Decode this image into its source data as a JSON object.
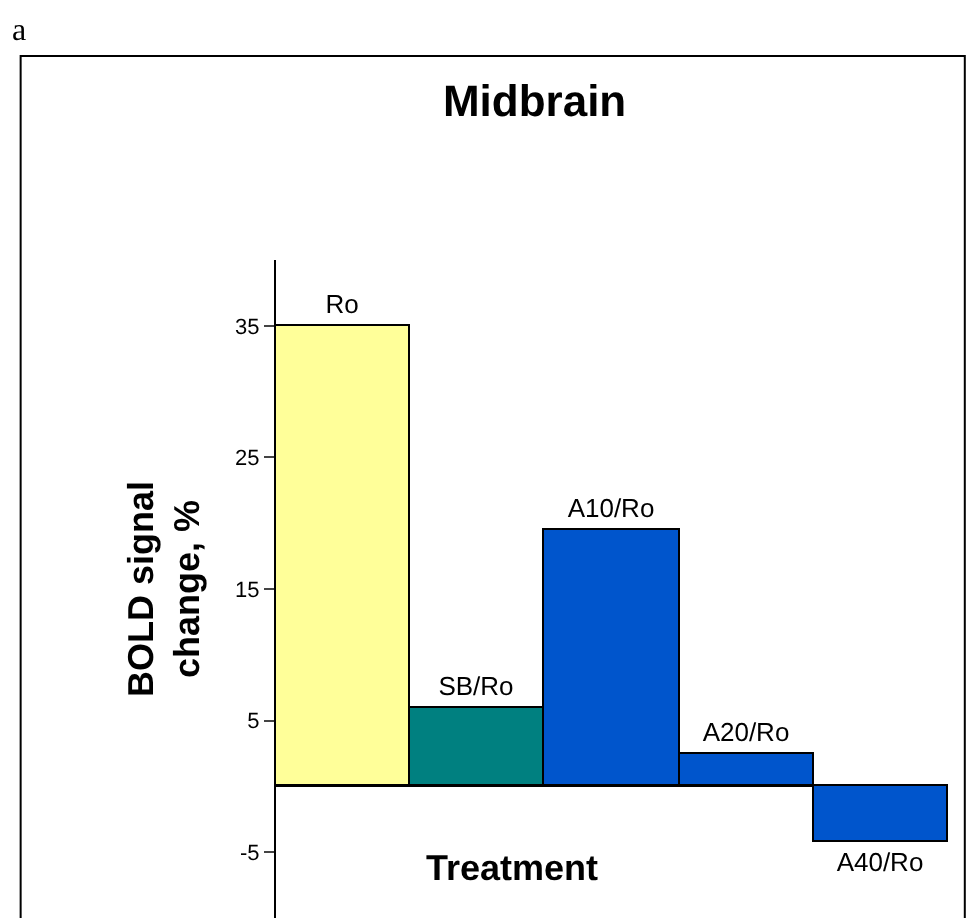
{
  "chart_data": {
    "type": "bar",
    "title": "Midbrain",
    "xlabel": "Treatment",
    "ylabel": "BOLD signal change, %",
    "categories": [
      "Ro",
      "SB/Ro",
      "A10/Ro",
      "A20/Ro",
      "A40/Ro"
    ],
    "values": [
      35,
      6,
      19.5,
      2.5,
      -4.3
    ],
    "colors": [
      "#ffff99",
      "#008080",
      "#0055cc",
      "#0055cc",
      "#0055cc"
    ],
    "ylim": [
      -10,
      40
    ],
    "yticks": [
      -5,
      5,
      15,
      25,
      35
    ],
    "tick_labels": "y",
    "annotations": [
      "a"
    ]
  }
}
